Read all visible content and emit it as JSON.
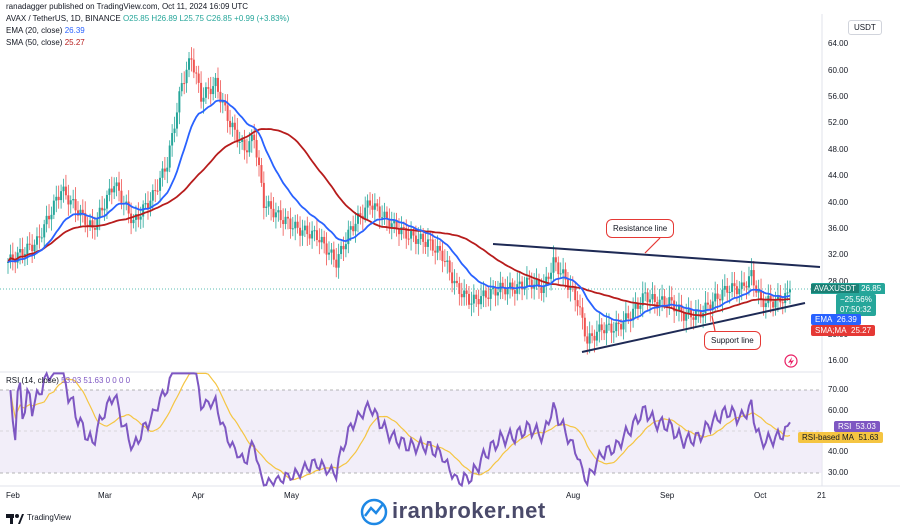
{
  "header": {
    "text": "ranadagger published on TradingView.com, Oct 11, 2024 16:09 UTC"
  },
  "legend": {
    "symbol": "AVAX / TetherUS, 1D, BINANCE",
    "ohlc": "O25.85  H26.89  L25.75  C26.85  +0.99 (+3.83%)",
    "ema_label": "EMA (20, close)",
    "ema_value": "26.39",
    "sma_label": "SMA (50, close)",
    "sma_value": "25.27",
    "rsi_label": "RSI (14, close)",
    "rsi_values": "53.03  51.63  0  0  0  0"
  },
  "currency_button": "USDT",
  "price_axis": [
    "64.00",
    "60.00",
    "56.00",
    "52.00",
    "48.00",
    "44.00",
    "40.00",
    "36.00",
    "32.00",
    "28.00",
    "20.00",
    "16.00"
  ],
  "rsi_axis": [
    "70.00",
    "60.00",
    "40.00",
    "30.00"
  ],
  "time_axis": [
    "Feb",
    "Mar",
    "Apr",
    "May",
    "Aug",
    "Sep",
    "Oct",
    "21"
  ],
  "tags": {
    "symbol": "AVAXUSDT",
    "price": "26.85",
    "change": "−25.56%",
    "countdown": "07:50:32",
    "ema": "EMA",
    "ema_val": "26.39",
    "sma": "SMA;MA",
    "sma_val": "25.27",
    "rsi": "RSI",
    "rsi_val": "53.03",
    "rsi_ma": "RSI-based MA",
    "rsi_ma_val": "51.63"
  },
  "annotations": {
    "resistance": "Resistance line",
    "support": "Support line"
  },
  "watermark": "iranbroker.net",
  "footer_logo": "TradingView",
  "colors": {
    "up": "#26a69a",
    "down": "#ef5350",
    "ema": "#2962ff",
    "sma": "#b71c1c",
    "rsi": "#7e57c2",
    "rsi_ma": "#f5c542",
    "trend": "#1e2a55"
  }
}
